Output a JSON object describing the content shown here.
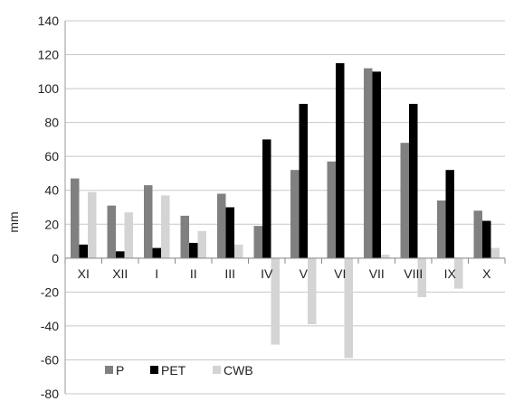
{
  "chart_data": {
    "type": "bar",
    "title": "",
    "xlabel": "",
    "ylabel": "mm",
    "ylim": [
      -80,
      140
    ],
    "yticks": [
      -80,
      -60,
      -40,
      -20,
      0,
      20,
      40,
      60,
      80,
      100,
      120,
      140
    ],
    "grid": "horizontal",
    "legend": "bottom-left",
    "categories": [
      "XI",
      "XII",
      "I",
      "II",
      "III",
      "IV",
      "V",
      "VI",
      "VII",
      "VIII",
      "IX",
      "X"
    ],
    "series": [
      {
        "name": "P",
        "color": "#808080",
        "values": [
          47,
          31,
          43,
          25,
          38,
          19,
          52,
          57,
          112,
          68,
          34,
          28
        ]
      },
      {
        "name": "PET",
        "color": "#000000",
        "values": [
          8,
          4,
          6,
          9,
          30,
          70,
          91,
          115,
          110,
          91,
          52,
          22
        ]
      },
      {
        "name": "CWB",
        "color": "#d4d4d4",
        "values": [
          39,
          27,
          37,
          16,
          8,
          -51,
          -39,
          -59,
          2,
          -23,
          -18,
          6
        ]
      }
    ]
  }
}
